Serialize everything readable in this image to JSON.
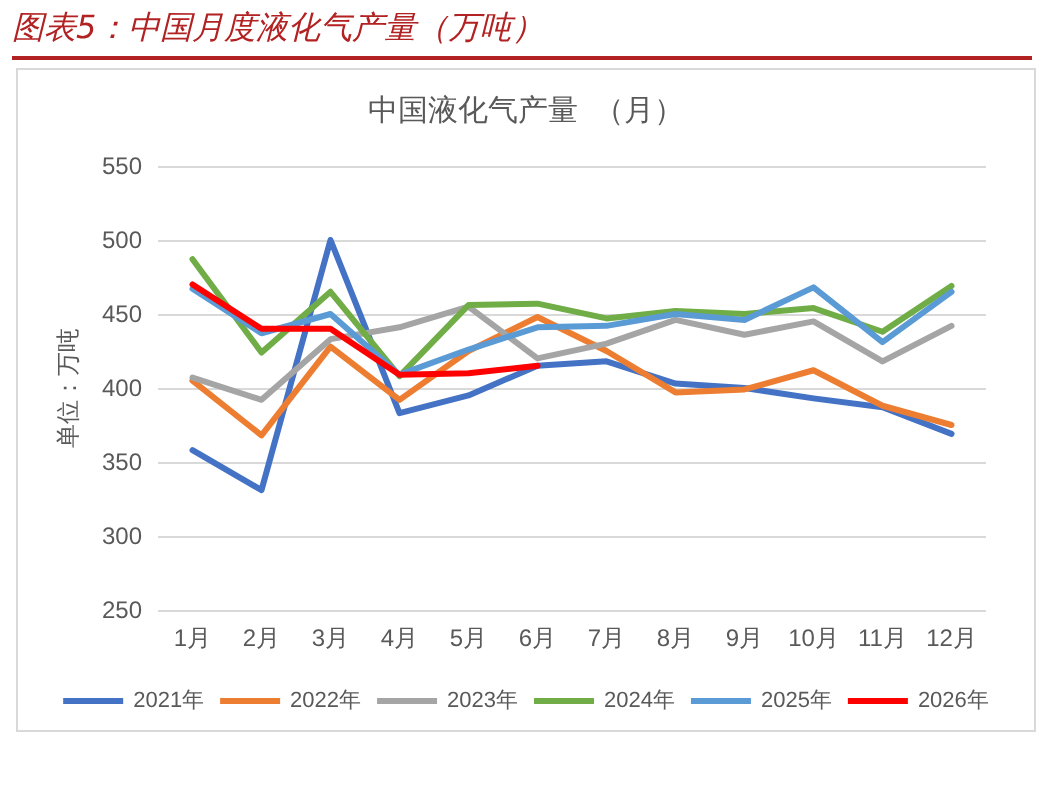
{
  "chart_data": {
    "type": "line",
    "title": "图表5：中国月度液化气产量（万吨）",
    "subtitle": "中国液化气产量  （月）",
    "ylabel": "单位：万吨",
    "categories": [
      "1月",
      "2月",
      "3月",
      "4月",
      "5月",
      "6月",
      "7月",
      "8月",
      "9月",
      "10月",
      "11月",
      "12月"
    ],
    "ylim": [
      250,
      550
    ],
    "yticks": [
      250,
      300,
      350,
      400,
      450,
      500,
      550
    ],
    "grid": "y",
    "legend": "bottom",
    "marker": "none",
    "line_style": "solid",
    "series": [
      {
        "name": "2021年",
        "color": "#4472c4",
        "values": [
          358,
          331,
          500,
          383,
          395,
          415,
          418,
          403,
          400,
          393,
          387,
          369
        ]
      },
      {
        "name": "2022年",
        "color": "#ed7d31",
        "values": [
          405,
          368,
          428,
          392,
          425,
          448,
          425,
          397,
          399,
          412,
          388,
          375
        ]
      },
      {
        "name": "2023年",
        "color": "#a5a5a5",
        "values": [
          407,
          392,
          433,
          441,
          455,
          420,
          430,
          446,
          436,
          445,
          418,
          442
        ]
      },
      {
        "name": "2024年",
        "color": "#70ad47",
        "values": [
          487,
          424,
          465,
          408,
          456,
          457,
          447,
          452,
          450,
          454,
          438,
          469
        ]
      },
      {
        "name": "2025年",
        "color": "#5b9bd5",
        "values": [
          467,
          437,
          450,
          409,
          426,
          441,
          442,
          450,
          446,
          468,
          431,
          465
        ]
      },
      {
        "name": "2026年",
        "color": "#ff0000",
        "values": [
          470,
          440,
          440,
          409,
          410,
          415,
          null,
          null,
          null,
          null,
          null,
          null
        ]
      }
    ]
  }
}
